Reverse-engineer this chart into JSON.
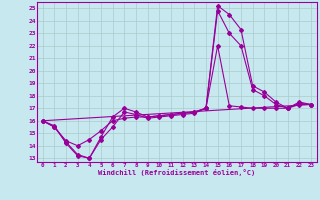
{
  "xlabel": "Windchill (Refroidissement éolien,°C)",
  "bg_color": "#c8e8f0",
  "line_color": "#990099",
  "grid_color": "#aacccc",
  "xlim": [
    -0.5,
    23.5
  ],
  "ylim": [
    12.7,
    25.5
  ],
  "yticks": [
    13,
    14,
    15,
    16,
    17,
    18,
    19,
    20,
    21,
    22,
    23,
    24,
    25
  ],
  "xticks": [
    0,
    1,
    2,
    3,
    4,
    5,
    6,
    7,
    8,
    9,
    10,
    11,
    12,
    13,
    14,
    15,
    16,
    17,
    18,
    19,
    20,
    21,
    22,
    23
  ],
  "line1_x": [
    0,
    1,
    2,
    3,
    4,
    5,
    6,
    7,
    8,
    9,
    10,
    11,
    12,
    13,
    14,
    15,
    16,
    17,
    18,
    19,
    20,
    21,
    22,
    23
  ],
  "line1_y": [
    16.0,
    15.6,
    14.2,
    13.2,
    13.0,
    14.7,
    16.3,
    17.0,
    16.7,
    16.3,
    16.4,
    16.5,
    16.6,
    16.7,
    17.0,
    25.2,
    24.5,
    23.3,
    18.8,
    18.3,
    17.5,
    17.0,
    17.5,
    17.3
  ],
  "line2_x": [
    0,
    1,
    2,
    3,
    4,
    5,
    6,
    7,
    8,
    9,
    10,
    11,
    12,
    13,
    14,
    15,
    16,
    17,
    18,
    19,
    20,
    21,
    22,
    23
  ],
  "line2_y": [
    16.0,
    15.5,
    14.4,
    14.0,
    14.5,
    15.2,
    16.0,
    16.2,
    16.3,
    16.3,
    16.4,
    16.5,
    16.6,
    16.7,
    17.0,
    24.8,
    23.0,
    22.0,
    18.5,
    18.0,
    17.3,
    17.0,
    17.4,
    17.3
  ],
  "line3_x": [
    0,
    1,
    2,
    3,
    4,
    5,
    6,
    7,
    8,
    9,
    10,
    11,
    12,
    13,
    14,
    15,
    16,
    17,
    18,
    19,
    20,
    21,
    22,
    23
  ],
  "line3_y": [
    16.0,
    15.5,
    14.3,
    13.3,
    13.0,
    14.5,
    15.5,
    16.7,
    16.5,
    16.2,
    16.3,
    16.4,
    16.5,
    16.6,
    17.0,
    22.0,
    17.2,
    17.1,
    17.0,
    17.0,
    17.0,
    17.0,
    17.3,
    17.3
  ],
  "line4_x": [
    0,
    23
  ],
  "line4_y": [
    16.0,
    17.3
  ]
}
